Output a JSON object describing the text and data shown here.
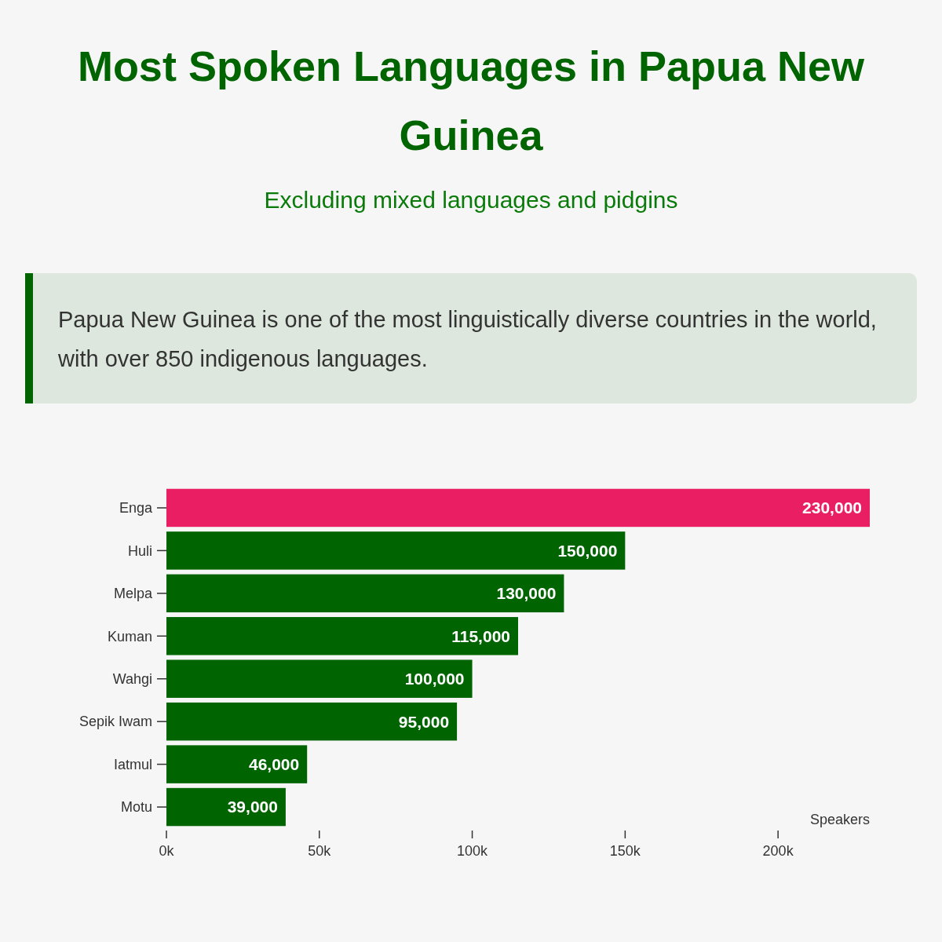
{
  "chart_data": {
    "type": "bar",
    "orientation": "horizontal",
    "title": "Most Spoken Languages in Papua New Guinea",
    "subtitle": "Excluding mixed languages and pidgins",
    "annotations": [
      "Papua New Guinea is one of the most linguistically diverse countries in the world, with over 850 indigenous languages."
    ],
    "categories": [
      "Enga",
      "Huli",
      "Melpa",
      "Kuman",
      "Wahgi",
      "Sepik Iwam",
      "Iatmul",
      "Motu"
    ],
    "values": [
      230000,
      150000,
      130000,
      115000,
      100000,
      95000,
      46000,
      39000
    ],
    "colors": [
      "#e91e63",
      "#006400",
      "#006400",
      "#006400",
      "#006400",
      "#006400",
      "#006400",
      "#006400"
    ],
    "value_labels": [
      "230,000",
      "150,000",
      "130,000",
      "115,000",
      "100,000",
      "95,000",
      "46,000",
      "39,000"
    ],
    "xlabel": "Speakers",
    "xlim": [
      0,
      230000
    ],
    "xticks": [
      {
        "value": 0,
        "label": "0k"
      },
      {
        "value": 50000,
        "label": "50k"
      },
      {
        "value": 100000,
        "label": "100k"
      },
      {
        "value": 150000,
        "label": "150k"
      },
      {
        "value": 200000,
        "label": "200k"
      }
    ]
  }
}
